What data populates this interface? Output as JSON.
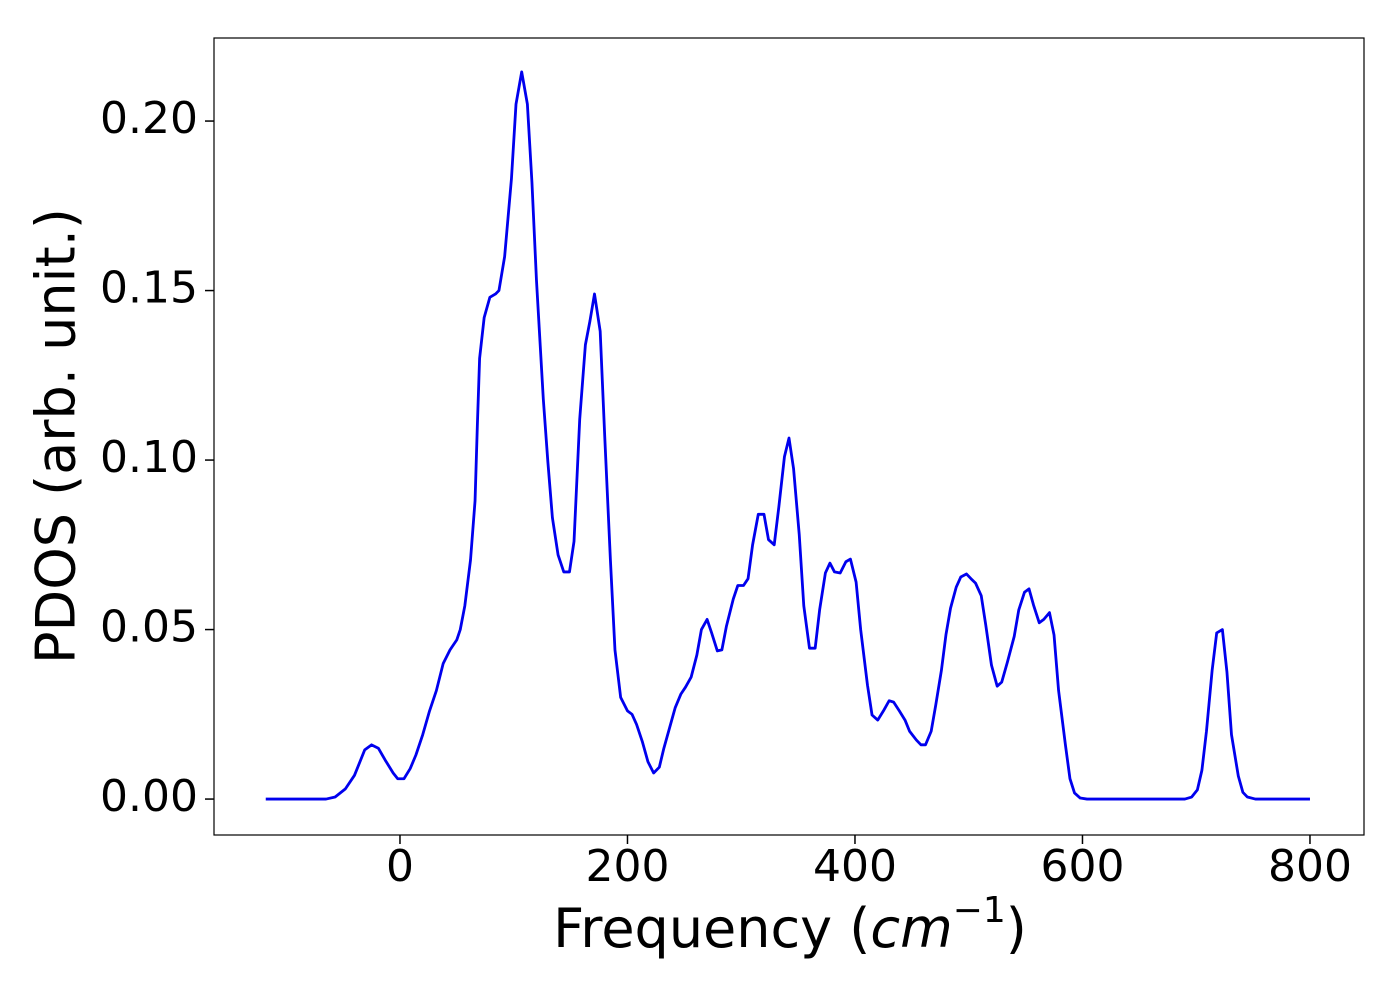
{
  "chart_data": {
    "type": "line",
    "xlabel": [
      "Frequency (",
      "cm",
      "−1",
      ")"
    ],
    "ylabel": "PDOS (arb. unit.)",
    "xlim": [
      -163.5,
      847.5
    ],
    "ylim": [
      -0.0106,
      0.2245
    ],
    "xticks": [
      0,
      200,
      400,
      600,
      800
    ],
    "yticks": [
      {
        "value": 0,
        "label": "0.00"
      },
      {
        "value": 0.05,
        "label": "0.05"
      },
      {
        "value": 0.1,
        "label": "0.10"
      },
      {
        "value": 0.15,
        "label": "0.15"
      },
      {
        "value": 0.2,
        "label": "0.20"
      }
    ],
    "grid": false,
    "series": [
      {
        "color": "#0000ee",
        "x": [
          -118,
          -100,
          -80,
          -65,
          -57,
          -48,
          -40,
          -31,
          -25,
          -19,
          -13,
          -6,
          -2,
          3.5,
          9,
          14,
          20,
          26,
          32,
          38,
          44,
          50,
          53,
          57,
          62,
          66,
          68,
          70,
          74,
          79,
          84,
          87,
          92,
          98,
          102,
          107,
          112,
          116,
          120,
          126,
          130,
          134,
          139,
          144,
          149,
          153,
          158,
          163,
          167,
          171,
          176,
          180,
          185,
          189,
          194,
          200,
          204,
          208,
          213,
          218,
          223,
          228,
          232,
          237,
          242,
          247,
          251,
          256,
          261,
          265,
          270,
          274,
          279,
          283,
          287,
          293,
          297,
          302,
          306,
          310,
          315,
          320,
          324,
          329,
          333,
          338,
          342,
          346,
          351,
          355,
          360,
          365,
          369,
          374,
          378,
          382,
          387,
          392,
          396,
          401,
          405,
          411,
          415,
          420,
          425,
          430,
          434,
          439,
          444,
          448,
          454,
          458,
          462,
          467,
          471,
          476,
          480,
          484,
          489,
          493,
          498,
          502,
          506,
          511,
          515,
          520,
          525,
          529,
          534,
          540,
          544,
          549,
          553,
          557,
          562,
          566,
          571,
          575,
          579,
          585,
          589,
          593,
          598,
          604,
          650,
          690,
          696,
          701,
          705,
          709,
          714,
          718,
          723,
          727,
          731,
          737,
          741,
          745,
          752,
          800
        ],
        "values": [
          0,
          0,
          0,
          0,
          0.0006,
          0.003,
          0.007,
          0.0145,
          0.016,
          0.015,
          0.0115,
          0.0077,
          0.006,
          0.006,
          0.009,
          0.013,
          0.019,
          0.026,
          0.032,
          0.04,
          0.044,
          0.047,
          0.05,
          0.057,
          0.0705,
          0.088,
          0.11,
          0.13,
          0.142,
          0.148,
          0.149,
          0.15,
          0.16,
          0.183,
          0.205,
          0.2145,
          0.205,
          0.182,
          0.153,
          0.118,
          0.0995,
          0.083,
          0.072,
          0.067,
          0.067,
          0.076,
          0.112,
          0.134,
          0.141,
          0.149,
          0.138,
          0.107,
          0.0705,
          0.044,
          0.03,
          0.026,
          0.025,
          0.022,
          0.017,
          0.011,
          0.0077,
          0.0094,
          0.015,
          0.021,
          0.027,
          0.031,
          0.033,
          0.036,
          0.0425,
          0.05,
          0.053,
          0.049,
          0.0437,
          0.044,
          0.051,
          0.059,
          0.063,
          0.063,
          0.065,
          0.075,
          0.084,
          0.084,
          0.0765,
          0.075,
          0.086,
          0.101,
          0.1065,
          0.0975,
          0.078,
          0.057,
          0.0445,
          0.0445,
          0.056,
          0.0667,
          0.0696,
          0.067,
          0.0667,
          0.07,
          0.0708,
          0.064,
          0.05,
          0.0336,
          0.0248,
          0.0233,
          0.026,
          0.029,
          0.0286,
          0.026,
          0.0233,
          0.02,
          0.0174,
          0.016,
          0.016,
          0.02,
          0.0277,
          0.038,
          0.0485,
          0.0563,
          0.0625,
          0.0655,
          0.0664,
          0.065,
          0.0637,
          0.06,
          0.0513,
          0.0395,
          0.0333,
          0.0345,
          0.0404,
          0.048,
          0.0558,
          0.061,
          0.062,
          0.0572,
          0.052,
          0.053,
          0.055,
          0.0484,
          0.032,
          0.016,
          0.006,
          0.0018,
          0.0003,
          0,
          0,
          0,
          0.0006,
          0.0027,
          0.0085,
          0.02,
          0.038,
          0.049,
          0.05,
          0.0375,
          0.019,
          0.0068,
          0.002,
          0.0006,
          0,
          0
        ]
      }
    ]
  }
}
